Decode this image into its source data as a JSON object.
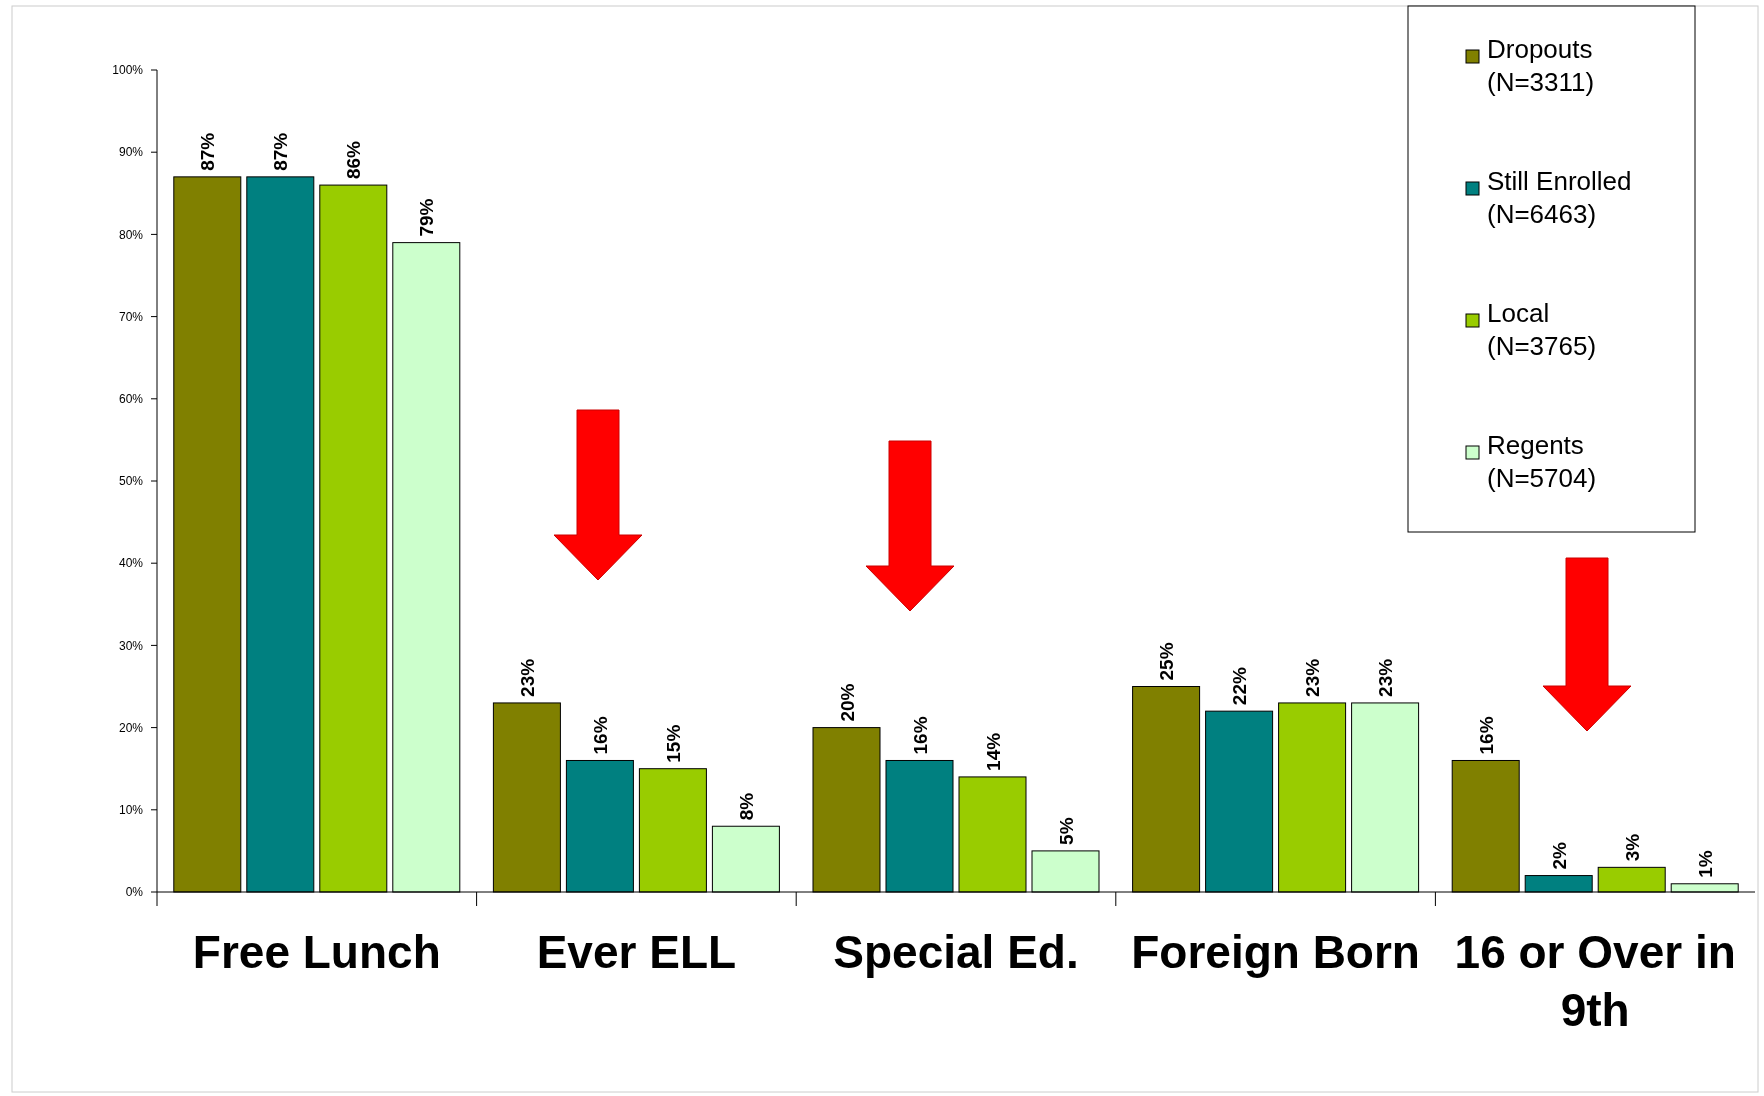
{
  "chart_data": {
    "type": "bar",
    "categories": [
      "Free Lunch",
      "Ever ELL",
      "Special Ed.",
      "Foreign Born",
      "16 or Over in 9th"
    ],
    "series": [
      {
        "name": "Dropouts (N=3311)",
        "color": "#808000",
        "values": [
          87,
          23,
          20,
          25,
          16
        ],
        "value_labels": [
          "87%",
          "23%",
          "20%",
          "25%",
          "16%"
        ]
      },
      {
        "name": "Still Enrolled (N=6463)",
        "color": "#008080",
        "values": [
          87,
          16,
          16,
          22,
          2
        ],
        "value_labels": [
          "87%",
          "16%",
          "16%",
          "22%",
          "2%"
        ]
      },
      {
        "name": "Local (N=3765)",
        "color": "#99cc00",
        "values": [
          86,
          15,
          14,
          23,
          3
        ],
        "value_labels": [
          "86%",
          "15%",
          "14%",
          "23%",
          "3%"
        ]
      },
      {
        "name": "Regents (N=5704)",
        "color": "#ccffcc",
        "values": [
          79,
          8,
          5,
          23,
          1
        ],
        "value_labels": [
          "79%",
          "8%",
          "5%",
          "23%",
          "1%"
        ]
      }
    ],
    "ylim": [
      0,
      100
    ],
    "yticks": [
      {
        "value": 0,
        "label": "0%"
      },
      {
        "value": 10,
        "label": "10%"
      },
      {
        "value": 20,
        "label": "20%"
      },
      {
        "value": 30,
        "label": "30%"
      },
      {
        "value": 40,
        "label": "40%"
      },
      {
        "value": 50,
        "label": "50%"
      },
      {
        "value": 60,
        "label": "60%"
      },
      {
        "value": 70,
        "label": "70%"
      },
      {
        "value": 80,
        "label": "80%"
      },
      {
        "value": 90,
        "label": "90%"
      },
      {
        "value": 100,
        "label": "100%"
      }
    ],
    "grid": false,
    "legend": "top right"
  }
}
